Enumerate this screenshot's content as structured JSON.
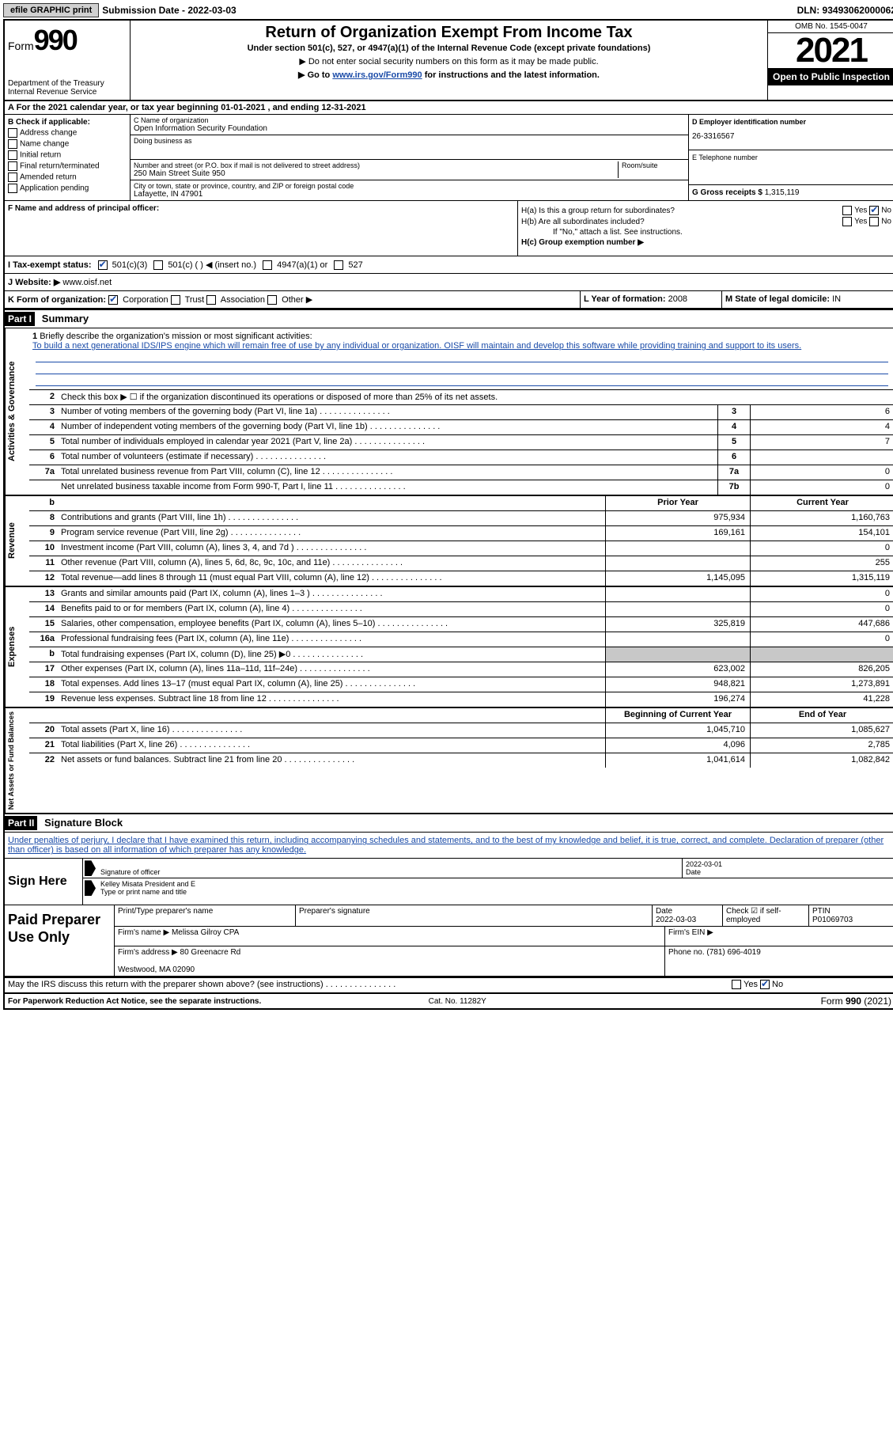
{
  "topbar": {
    "efile": "efile GRAPHIC print",
    "submission": "Submission Date - 2022-03-03",
    "dln": "DLN: 93493062000062"
  },
  "header": {
    "form_label": "Form",
    "form_num": "990",
    "title": "Return of Organization Exempt From Income Tax",
    "sub1": "Under section 501(c), 527, or 4947(a)(1) of the Internal Revenue Code (except private foundations)",
    "sub2": "▶ Do not enter social security numbers on this form as it may be made public.",
    "sub3_pre": "▶ Go to ",
    "sub3_link": "www.irs.gov/Form990",
    "sub3_post": " for instructions and the latest information.",
    "dept": "Department of the Treasury\nInternal Revenue Service",
    "omb": "OMB No. 1545-0047",
    "year": "2021",
    "inspect": "Open to Public Inspection"
  },
  "rowA": "A For the 2021 calendar year, or tax year beginning 01-01-2021   , and ending 12-31-2021",
  "sectionB": {
    "title": "B Check if applicable:",
    "opts": [
      "Address change",
      "Name change",
      "Initial return",
      "Final return/terminated",
      "Amended return",
      "Application pending"
    ]
  },
  "sectionC": {
    "name_lbl": "C Name of organization",
    "name": "Open Information Security Foundation",
    "dba_lbl": "Doing business as",
    "street_lbl": "Number and street (or P.O. box if mail is not delivered to street address)",
    "street": "250 Main Street Suite 950",
    "room_lbl": "Room/suite",
    "city_lbl": "City or town, state or province, country, and ZIP or foreign postal code",
    "city": "Lafayette, IN  47901"
  },
  "sectionD": {
    "ein_lbl": "D Employer identification number",
    "ein": "26-3316567",
    "tel_lbl": "E Telephone number",
    "gross_lbl": "G Gross receipts $",
    "gross": "1,315,119"
  },
  "rowF": "F Name and address of principal officer:",
  "hGroup": {
    "ha": "H(a)  Is this a group return for subordinates?",
    "hb": "H(b)  Are all subordinates included?",
    "hb_note": "If \"No,\" attach a list. See instructions.",
    "hc": "H(c)  Group exemption number ▶"
  },
  "rowI": {
    "lbl": "I   Tax-exempt status:",
    "o1": "501(c)(3)",
    "o2": "501(c) (  ) ◀ (insert no.)",
    "o3": "4947(a)(1) or",
    "o4": "527"
  },
  "rowJ": {
    "lbl": "J   Website: ▶",
    "val": "www.oisf.net"
  },
  "rowK": {
    "lbl": "K Form of organization:",
    "o1": "Corporation",
    "o2": "Trust",
    "o3": "Association",
    "o4": "Other ▶",
    "year_lbl": "L Year of formation:",
    "year": "2008",
    "state_lbl": "M State of legal domicile:",
    "state": "IN"
  },
  "part1": {
    "hdr": "Part I",
    "title": "Summary",
    "line1_lbl": "Briefly describe the organization's mission or most significant activities:",
    "line1_txt": "To build a next generational IDS/IPS engine which will remain free of use by any individual or organization. OISF will maintain and develop this software while providing training and support to its users.",
    "line2": "Check this box ▶ ☐ if the organization discontinued its operations or disposed of more than 25% of its net assets."
  },
  "act_rows": [
    {
      "n": "3",
      "t": "Number of voting members of the governing body (Part VI, line 1a)",
      "b": "3",
      "v": "6"
    },
    {
      "n": "4",
      "t": "Number of independent voting members of the governing body (Part VI, line 1b)",
      "b": "4",
      "v": "4"
    },
    {
      "n": "5",
      "t": "Total number of individuals employed in calendar year 2021 (Part V, line 2a)",
      "b": "5",
      "v": "7"
    },
    {
      "n": "6",
      "t": "Total number of volunteers (estimate if necessary)",
      "b": "6",
      "v": ""
    },
    {
      "n": "7a",
      "t": "Total unrelated business revenue from Part VIII, column (C), line 12",
      "b": "7a",
      "v": "0"
    },
    {
      "n": "",
      "t": "Net unrelated business taxable income from Form 990-T, Part I, line 11",
      "b": "7b",
      "v": "0"
    }
  ],
  "rev_hdr": {
    "py": "Prior Year",
    "cy": "Current Year"
  },
  "rev_rows": [
    {
      "n": "8",
      "t": "Contributions and grants (Part VIII, line 1h)",
      "py": "975,934",
      "cy": "1,160,763"
    },
    {
      "n": "9",
      "t": "Program service revenue (Part VIII, line 2g)",
      "py": "169,161",
      "cy": "154,101"
    },
    {
      "n": "10",
      "t": "Investment income (Part VIII, column (A), lines 3, 4, and 7d )",
      "py": "",
      "cy": "0"
    },
    {
      "n": "11",
      "t": "Other revenue (Part VIII, column (A), lines 5, 6d, 8c, 9c, 10c, and 11e)",
      "py": "",
      "cy": "255"
    },
    {
      "n": "12",
      "t": "Total revenue—add lines 8 through 11 (must equal Part VIII, column (A), line 12)",
      "py": "1,145,095",
      "cy": "1,315,119"
    }
  ],
  "exp_rows": [
    {
      "n": "13",
      "t": "Grants and similar amounts paid (Part IX, column (A), lines 1–3 )",
      "py": "",
      "cy": "0"
    },
    {
      "n": "14",
      "t": "Benefits paid to or for members (Part IX, column (A), line 4)",
      "py": "",
      "cy": "0"
    },
    {
      "n": "15",
      "t": "Salaries, other compensation, employee benefits (Part IX, column (A), lines 5–10)",
      "py": "325,819",
      "cy": "447,686"
    },
    {
      "n": "16a",
      "t": "Professional fundraising fees (Part IX, column (A), line 11e)",
      "py": "",
      "cy": "0"
    },
    {
      "n": "b",
      "t": "Total fundraising expenses (Part IX, column (D), line 25) ▶0",
      "py": "SHADE",
      "cy": "SHADE"
    },
    {
      "n": "17",
      "t": "Other expenses (Part IX, column (A), lines 11a–11d, 11f–24e)",
      "py": "623,002",
      "cy": "826,205"
    },
    {
      "n": "18",
      "t": "Total expenses. Add lines 13–17 (must equal Part IX, column (A), line 25)",
      "py": "948,821",
      "cy": "1,273,891"
    },
    {
      "n": "19",
      "t": "Revenue less expenses. Subtract line 18 from line 12",
      "py": "196,274",
      "cy": "41,228"
    }
  ],
  "na_hdr": {
    "py": "Beginning of Current Year",
    "cy": "End of Year"
  },
  "na_rows": [
    {
      "n": "20",
      "t": "Total assets (Part X, line 16)",
      "py": "1,045,710",
      "cy": "1,085,627"
    },
    {
      "n": "21",
      "t": "Total liabilities (Part X, line 26)",
      "py": "4,096",
      "cy": "2,785"
    },
    {
      "n": "22",
      "t": "Net assets or fund balances. Subtract line 21 from line 20",
      "py": "1,041,614",
      "cy": "1,082,842"
    }
  ],
  "part2": {
    "hdr": "Part II",
    "title": "Signature Block",
    "decl": "Under penalties of perjury, I declare that I have examined this return, including accompanying schedules and statements, and to the best of my knowledge and belief, it is true, correct, and complete. Declaration of preparer (other than officer) is based on all information of which preparer has any knowledge."
  },
  "sign": {
    "left": "Sign Here",
    "sig_lbl": "Signature of officer",
    "date": "2022-03-01",
    "date_lbl": "Date",
    "name": "Kelley Misata  President and E",
    "name_lbl": "Type or print name and title"
  },
  "paid": {
    "left": "Paid Preparer Use Only",
    "r1c1": "Print/Type preparer's name",
    "r1c2": "Preparer's signature",
    "r1c3": "Date\n2022-03-03",
    "r1c4": "Check ☑ if self-employed",
    "r1c5": "PTIN\nP01069703",
    "r2c1": "Firm's name    ▶",
    "r2c1v": "Melissa Gilroy CPA",
    "r2c2": "Firm's EIN ▶",
    "r3c1": "Firm's address ▶",
    "r3c1v": "80 Greenacre Rd\n\nWestwood, MA  02090",
    "r3c2": "Phone no. (781) 696-4019"
  },
  "discuss": "May the IRS discuss this return with the preparer shown above? (see instructions)",
  "footer": {
    "left": "For Paperwork Reduction Act Notice, see the separate instructions.",
    "mid": "Cat. No. 11282Y",
    "right": "Form 990 (2021)"
  }
}
